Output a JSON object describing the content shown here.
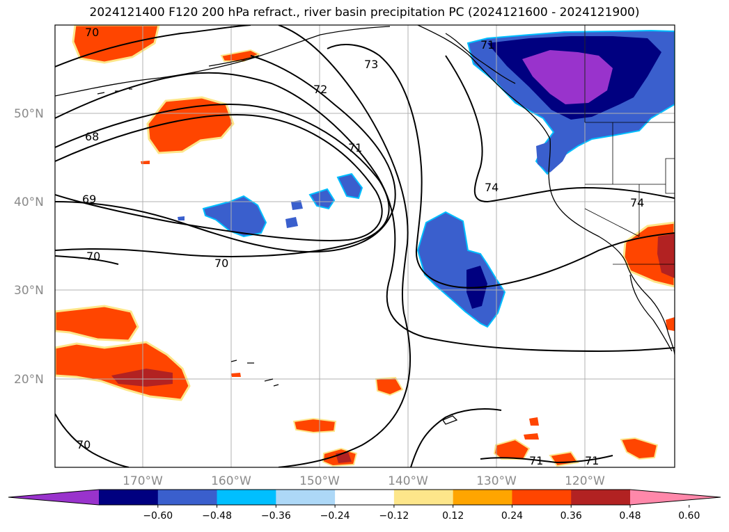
{
  "title": "2024121400 F120 200 hPa refract., river basin precipitation PC (2024121600 - 2024121900)",
  "lat_labels": [
    "50°N",
    "40°N",
    "30°N",
    "20°N"
  ],
  "lon_labels": [
    "170°W",
    "160°W",
    "150°W",
    "140°W",
    "130°W",
    "120°W"
  ],
  "contour_labels": [
    "70",
    "73",
    "72",
    "68",
    "71",
    "74",
    "74",
    "69",
    "70",
    "70",
    "70",
    "71",
    "71",
    "71"
  ],
  "colorbar": {
    "ticks": [
      "−0.60",
      "−0.48",
      "−0.36",
      "−0.24",
      "−0.12",
      "0.12",
      "0.24",
      "0.36",
      "0.48",
      "0.60"
    ],
    "colors": [
      "#9933cc",
      "#000080",
      "#3a5fcd",
      "#00bfff",
      "#add8f7",
      "#ffffff",
      "#fde68a",
      "#ffa500",
      "#ff4500",
      "#b22222",
      "#ff88aa"
    ]
  },
  "colors": {
    "land_outline": "#000000",
    "grid": "#b0b0b0",
    "contour": "#000000"
  }
}
